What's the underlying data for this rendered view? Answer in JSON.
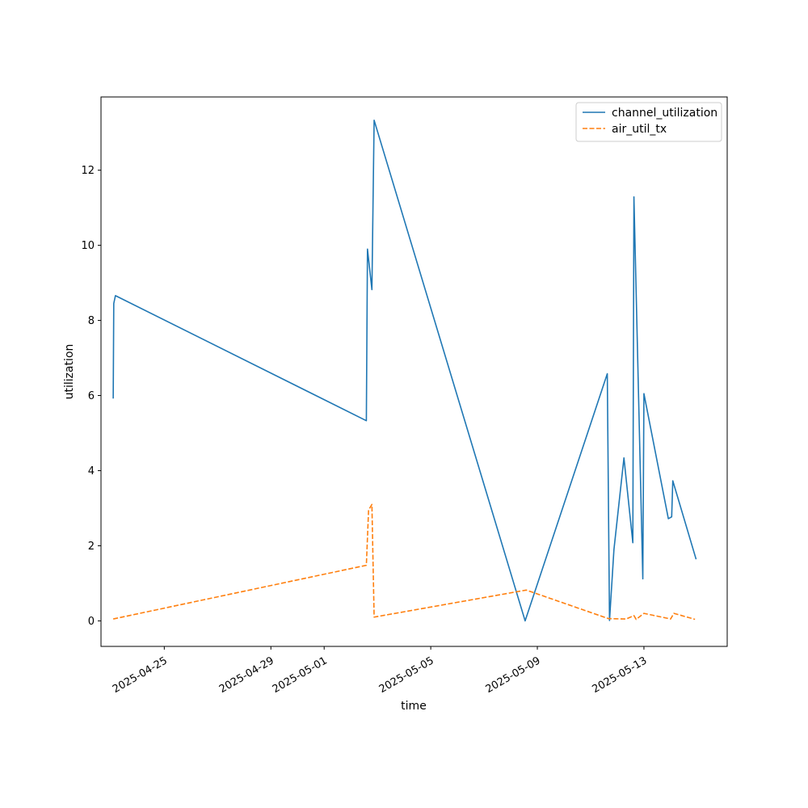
{
  "chart_data": {
    "type": "line",
    "title": "",
    "xlabel": "time",
    "ylabel": "utilization",
    "xlim": [
      "2025-04-22T15:00",
      "2025-05-16T03:00"
    ],
    "ylim": [
      -0.68,
      13.95
    ],
    "x_ticks": [
      {
        "value": "2025-04-25",
        "label": "2025-04-25"
      },
      {
        "value": "2025-04-29",
        "label": "2025-04-29"
      },
      {
        "value": "2025-05-01",
        "label": "2025-05-01"
      },
      {
        "value": "2025-05-05",
        "label": "2025-05-05"
      },
      {
        "value": "2025-05-09",
        "label": "2025-05-09"
      },
      {
        "value": "2025-05-13",
        "label": "2025-05-13"
      }
    ],
    "y_ticks": [
      0,
      2,
      4,
      6,
      8,
      10,
      12
    ],
    "grid": false,
    "legend_position": "top-right",
    "series": [
      {
        "name": "channel_utilization",
        "color": "#1f77b4",
        "dash": "solid",
        "points": [
          [
            "2025-04-23T02:00",
            5.92
          ],
          [
            "2025-04-23T02:30",
            8.45
          ],
          [
            "2025-04-23T04:00",
            8.66
          ],
          [
            "2025-05-02T14:00",
            5.33
          ],
          [
            "2025-05-02T15:00",
            9.9
          ],
          [
            "2025-05-02T19:00",
            8.82
          ],
          [
            "2025-05-02T21:00",
            13.33
          ],
          [
            "2025-05-08T13:00",
            0.0
          ],
          [
            "2025-05-11T15:00",
            6.58
          ],
          [
            "2025-05-11T17:00",
            0.01
          ],
          [
            "2025-05-11T21:00",
            1.9
          ],
          [
            "2025-05-12T06:00",
            4.34
          ],
          [
            "2025-05-12T14:00",
            2.08
          ],
          [
            "2025-05-12T15:00",
            11.29
          ],
          [
            "2025-05-12T23:00",
            1.12
          ],
          [
            "2025-05-13T00:00",
            6.05
          ],
          [
            "2025-05-13T22:00",
            2.72
          ],
          [
            "2025-05-14T01:00",
            2.77
          ],
          [
            "2025-05-14T02:00",
            3.73
          ],
          [
            "2025-05-14T23:00",
            1.64
          ]
        ]
      },
      {
        "name": "air_util_tx",
        "color": "#ff7f0e",
        "dash": "dashed",
        "points": [
          [
            "2025-04-23T02:00",
            0.05
          ],
          [
            "2025-05-02T14:00",
            1.48
          ],
          [
            "2025-05-02T16:00",
            2.95
          ],
          [
            "2025-05-02T19:00",
            3.1
          ],
          [
            "2025-05-02T21:00",
            0.1
          ],
          [
            "2025-05-08T14:00",
            0.82
          ],
          [
            "2025-05-11T16:00",
            0.06
          ],
          [
            "2025-05-12T08:00",
            0.05
          ],
          [
            "2025-05-12T15:00",
            0.14
          ],
          [
            "2025-05-12T17:00",
            0.04
          ],
          [
            "2025-05-13T00:00",
            0.2
          ],
          [
            "2025-05-14T00:00",
            0.05
          ],
          [
            "2025-05-14T03:00",
            0.2
          ],
          [
            "2025-05-14T22:00",
            0.04
          ]
        ]
      }
    ]
  }
}
